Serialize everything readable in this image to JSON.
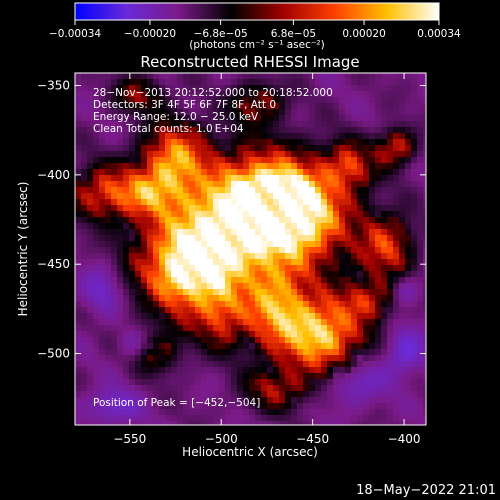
{
  "chart_data": {
    "type": "heatmap",
    "title": "Reconstructed RHESSI Image",
    "xlabel": "Heliocentric X (arcsec)",
    "ylabel": "Heliocentric Y (arcsec)",
    "xlim": [
      -580,
      -388
    ],
    "ylim": [
      -540,
      -343
    ],
    "x_ticks": [
      -550,
      -500,
      -450,
      -400
    ],
    "y_ticks": [
      -350,
      -400,
      -450,
      -500
    ],
    "x_tick_labels": [
      "−550",
      "−500",
      "−450",
      "−400"
    ],
    "y_tick_labels": [
      "−350",
      "−400",
      "−450",
      "−500"
    ],
    "colorbar": {
      "range": [
        -0.00034,
        0.00034
      ],
      "ticks": [
        -0.00034,
        -0.0002,
        -6.8e-05,
        6.8e-05,
        0.0002,
        0.00034
      ],
      "tick_labels": [
        "−0.00034",
        "−0.00020",
        "−6.8e−05",
        "6.8e−05",
        "0.00020",
        "0.00034"
      ],
      "unit_label": "(photons cm⁻² s⁻¹ asec⁻²)",
      "colors": [
        "#0000ff",
        "#6a2ad8",
        "#7a1a86",
        "#000000",
        "#a00000",
        "#ff4000",
        "#ffc000",
        "#ffffff"
      ]
    },
    "info_lines": [
      "28−Nov−2013 20:12:52.000 to 20:18:52.000",
      "Detectors: 3F 4F 5F 6F 7F 8F, Att 0",
      "Energy Range: 12.0 − 25.0 keV",
      "Clean    Total counts: 1.0 E+04"
    ],
    "peak_label": "Position of Peak = [−452,−504]",
    "peak": [
      -452,
      -504
    ],
    "emission_blobs": [
      {
        "x": -500,
        "y": -435,
        "sx": 25,
        "sy": 22,
        "a": 1.0
      },
      {
        "x": -475,
        "y": -410,
        "sx": 20,
        "sy": 16,
        "a": 0.9
      },
      {
        "x": -455,
        "y": -425,
        "sx": 18,
        "sy": 18,
        "a": 0.85
      },
      {
        "x": -520,
        "y": -455,
        "sx": 16,
        "sy": 16,
        "a": 0.8
      },
      {
        "x": -525,
        "y": -390,
        "sx": 12,
        "sy": 13,
        "a": 0.75
      },
      {
        "x": -540,
        "y": -410,
        "sx": 12,
        "sy": 10,
        "a": 0.6
      },
      {
        "x": -565,
        "y": -410,
        "sx": 12,
        "sy": 10,
        "a": 0.55
      },
      {
        "x": -445,
        "y": -490,
        "sx": 15,
        "sy": 15,
        "a": 0.95
      },
      {
        "x": -470,
        "y": -475,
        "sx": 12,
        "sy": 16,
        "a": 0.7
      },
      {
        "x": -500,
        "y": -480,
        "sx": 10,
        "sy": 12,
        "a": 0.45
      },
      {
        "x": -410,
        "y": -440,
        "sx": 10,
        "sy": 12,
        "a": 0.6
      },
      {
        "x": -420,
        "y": -470,
        "sx": 10,
        "sy": 8,
        "a": 0.45
      },
      {
        "x": -405,
        "y": -385,
        "sx": 7,
        "sy": 7,
        "a": 0.55
      },
      {
        "x": -430,
        "y": -395,
        "sx": 9,
        "sy": 9,
        "a": 0.55
      },
      {
        "x": -480,
        "y": -360,
        "sx": 10,
        "sy": 8,
        "a": 0.4
      },
      {
        "x": -545,
        "y": -355,
        "sx": 10,
        "sy": 7,
        "a": 0.35
      },
      {
        "x": -470,
        "y": -520,
        "sx": 12,
        "sy": 8,
        "a": 0.4
      },
      {
        "x": -535,
        "y": -500,
        "sx": 9,
        "sy": 8,
        "a": 0.3
      }
    ],
    "negative_blobs": [
      {
        "x": -430,
        "y": -515,
        "sx": 12,
        "sy": 10,
        "a": 0.6
      },
      {
        "x": -560,
        "y": -530,
        "sx": 10,
        "sy": 7,
        "a": 0.5
      },
      {
        "x": -400,
        "y": -500,
        "sx": 8,
        "sy": 10,
        "a": 0.55
      },
      {
        "x": -565,
        "y": -465,
        "sx": 8,
        "sy": 10,
        "a": 0.45
      },
      {
        "x": -400,
        "y": -465,
        "sx": 6,
        "sy": 6,
        "a": 0.45
      },
      {
        "x": -548,
        "y": -495,
        "sx": 6,
        "sy": 6,
        "a": 0.4
      }
    ]
  },
  "footer": {
    "timestamp": "18−May−2022 21:01"
  }
}
